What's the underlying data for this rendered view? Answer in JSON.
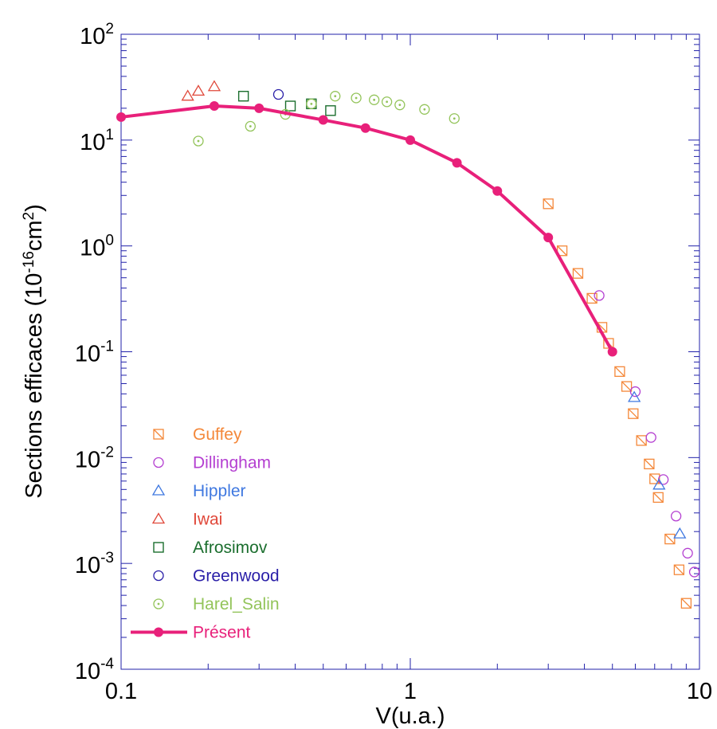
{
  "chart_data": {
    "type": "scatter",
    "title": "",
    "xlabel": "V(u.a.)",
    "ylabel": "Sections efficaces (10-16cm2)",
    "ylabel_parts": {
      "pre": "Sections efficaces (10",
      "exp1": "-16",
      "mid": "cm",
      "exp2": "2",
      "post": ")"
    },
    "x_scale": "log",
    "y_scale": "log",
    "xlim": [
      0.1,
      10
    ],
    "ylim": [
      0.0001,
      100
    ],
    "x_ticks": [
      {
        "value": 0.1,
        "label": "0.1"
      },
      {
        "value": 1,
        "label": "1"
      },
      {
        "value": 10,
        "label": "10"
      }
    ],
    "y_ticks": [
      {
        "value": 100,
        "base": "10",
        "exp": "2"
      },
      {
        "value": 10,
        "base": "10",
        "exp": "1"
      },
      {
        "value": 1,
        "base": "10",
        "exp": "0"
      },
      {
        "value": 0.1,
        "base": "10",
        "exp": "-1"
      },
      {
        "value": 0.01,
        "base": "10",
        "exp": "-2"
      },
      {
        "value": 0.001,
        "base": "10",
        "exp": "-3"
      },
      {
        "value": 0.0001,
        "base": "10",
        "exp": "-4"
      }
    ],
    "grid": false,
    "legend_position": "bottom-left",
    "series": [
      {
        "name": "Guffey",
        "marker": "square-slash",
        "color": "#f4883a",
        "x": [
          3.0,
          3.35,
          3.8,
          4.25,
          4.6,
          4.85,
          5.3,
          5.6,
          5.9,
          6.3,
          6.7,
          7.0,
          7.2,
          7.9,
          8.5,
          9.0
        ],
        "y": [
          2.5,
          0.9,
          0.55,
          0.32,
          0.17,
          0.12,
          0.065,
          0.047,
          0.026,
          0.0145,
          0.0087,
          0.0063,
          0.0042,
          0.0017,
          0.00087,
          0.00042
        ]
      },
      {
        "name": "Dillingham",
        "marker": "circle",
        "color": "#b43fd1",
        "x": [
          4.5,
          6.0,
          6.8,
          7.5,
          8.3,
          9.1,
          9.6
        ],
        "y": [
          0.34,
          0.042,
          0.0155,
          0.0062,
          0.0028,
          0.00125,
          0.00083
        ]
      },
      {
        "name": "Hippler",
        "marker": "triangle",
        "color": "#3f78e0",
        "x": [
          5.95,
          7.25,
          8.55
        ],
        "y": [
          0.037,
          0.0055,
          0.0019
        ]
      },
      {
        "name": "Iwai",
        "marker": "triangle",
        "color": "#e0483a",
        "x": [
          0.17,
          0.185,
          0.21
        ],
        "y": [
          26,
          29,
          32
        ]
      },
      {
        "name": "Afrosimov",
        "marker": "square",
        "color": "#1b6e2e",
        "x": [
          0.265,
          0.385,
          0.455,
          0.53
        ],
        "y": [
          26,
          21,
          22,
          19
        ]
      },
      {
        "name": "Greenwood",
        "marker": "circle",
        "color": "#2a1fa8",
        "x": [
          0.35
        ],
        "y": [
          27
        ]
      },
      {
        "name": "Harel_Salin",
        "marker": "circle-dot",
        "color": "#93c45a",
        "x": [
          0.185,
          0.28,
          0.37,
          0.455,
          0.55,
          0.65,
          0.75,
          0.83,
          0.92,
          1.12,
          1.42
        ],
        "y": [
          9.8,
          13.5,
          17.5,
          22,
          26,
          25,
          24,
          23,
          21.5,
          19.5,
          16
        ]
      },
      {
        "name": "Présent",
        "marker": "filled-circle-line",
        "color": "#e8207a",
        "x": [
          0.1,
          0.21,
          0.3,
          0.5,
          0.7,
          1.0,
          1.45,
          2.0,
          3.0,
          5.0
        ],
        "y": [
          16.5,
          21,
          20,
          15.5,
          13,
          10,
          6.1,
          3.3,
          1.2,
          0.1
        ]
      }
    ]
  }
}
